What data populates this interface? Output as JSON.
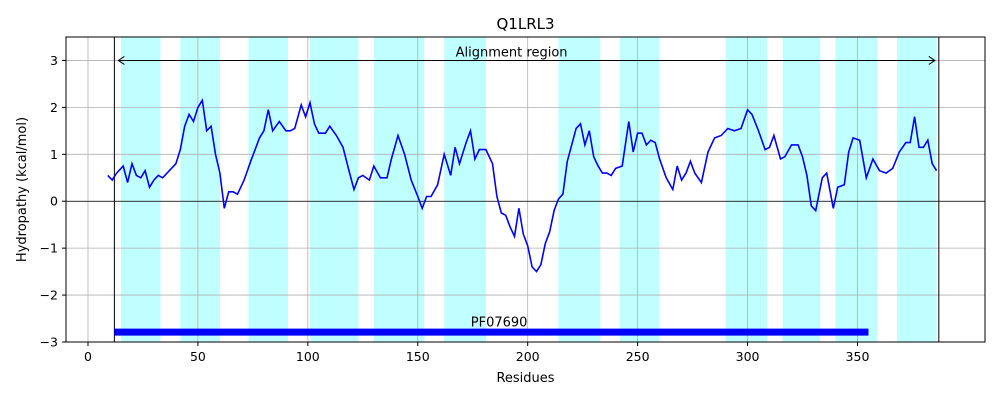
{
  "chart_data": {
    "type": "line",
    "title": "Q1LRL3",
    "xlabel": "Residues",
    "ylabel": "Hydropathy (kcal/mol)",
    "xlim": [
      -10,
      408
    ],
    "ylim": [
      -3,
      3.5
    ],
    "xticks": [
      0,
      50,
      100,
      150,
      200,
      250,
      300,
      350
    ],
    "yticks": [
      -3,
      -2,
      -1,
      0,
      1,
      2,
      3
    ],
    "xtick_labels": [
      "0",
      "50",
      "100",
      "150",
      "200",
      "250",
      "300",
      "350"
    ],
    "ytick_labels": [
      "−3",
      "−2",
      "−1",
      "0",
      "1",
      "2",
      "3"
    ],
    "grid": true,
    "line_color": "#0000ff",
    "band_color": "#c0ffff",
    "domain_color": "#0000ff",
    "series": [
      {
        "x": [
          9,
          11,
          13,
          16,
          18,
          20,
          22,
          24,
          26,
          28,
          30,
          32,
          34,
          37,
          40,
          42,
          44,
          46,
          48,
          50,
          52,
          54,
          56,
          58,
          60,
          62,
          64,
          66,
          68,
          71,
          74,
          76,
          78,
          80,
          82,
          84,
          87,
          90,
          92,
          94,
          97,
          99,
          101,
          103,
          105,
          108,
          110,
          113,
          116,
          119,
          121,
          123,
          125,
          128,
          130,
          133,
          136,
          138,
          141,
          144,
          147,
          150,
          152,
          154,
          156,
          159,
          162,
          165,
          167,
          169,
          172,
          174,
          176,
          178,
          181,
          184,
          186,
          188,
          190,
          192,
          194,
          196,
          198,
          200,
          202,
          204,
          206,
          208,
          210,
          212,
          214,
          216,
          218,
          220,
          222,
          224,
          226,
          228,
          230,
          232,
          234,
          236,
          238,
          240,
          243,
          246,
          248,
          250,
          252,
          254,
          256,
          258,
          260,
          263,
          266,
          268,
          270,
          272,
          274,
          276,
          279,
          282,
          285,
          288,
          291,
          294,
          297,
          300,
          302,
          305,
          308,
          310,
          312,
          315,
          317,
          320,
          323,
          325,
          327,
          329,
          331,
          334,
          336,
          339,
          341,
          344,
          346,
          348,
          351,
          354,
          357,
          360,
          363,
          366,
          369,
          372,
          374,
          376,
          378,
          380,
          382,
          384,
          386
        ],
        "y": [
          0.55,
          0.45,
          0.6,
          0.75,
          0.4,
          0.8,
          0.55,
          0.5,
          0.65,
          0.3,
          0.45,
          0.55,
          0.5,
          0.65,
          0.8,
          1.1,
          1.6,
          1.85,
          1.7,
          2.0,
          2.15,
          1.5,
          1.6,
          1.0,
          0.6,
          -0.15,
          0.2,
          0.2,
          0.15,
          0.45,
          0.85,
          1.1,
          1.35,
          1.5,
          1.95,
          1.5,
          1.7,
          1.5,
          1.5,
          1.55,
          2.05,
          1.8,
          2.1,
          1.65,
          1.45,
          1.45,
          1.6,
          1.4,
          1.15,
          0.6,
          0.25,
          0.5,
          0.55,
          0.45,
          0.75,
          0.5,
          0.5,
          0.9,
          1.4,
          1.0,
          0.45,
          0.1,
          -0.15,
          0.1,
          0.1,
          0.35,
          1.0,
          0.55,
          1.15,
          0.8,
          1.25,
          1.5,
          0.9,
          1.1,
          1.1,
          0.8,
          0.1,
          -0.25,
          -0.3,
          -0.55,
          -0.75,
          -0.15,
          -0.7,
          -0.95,
          -1.4,
          -1.5,
          -1.35,
          -0.9,
          -0.65,
          -0.2,
          0.05,
          0.15,
          0.85,
          1.2,
          1.55,
          1.65,
          1.2,
          1.5,
          0.95,
          0.75,
          0.6,
          0.6,
          0.55,
          0.7,
          0.75,
          1.7,
          1.05,
          1.45,
          1.45,
          1.2,
          1.3,
          1.25,
          0.9,
          0.5,
          0.25,
          0.75,
          0.45,
          0.6,
          0.85,
          0.6,
          0.4,
          1.05,
          1.35,
          1.4,
          1.55,
          1.5,
          1.55,
          1.95,
          1.85,
          1.5,
          1.1,
          1.15,
          1.4,
          0.9,
          0.95,
          1.2,
          1.2,
          0.95,
          0.55,
          -0.1,
          -0.2,
          0.5,
          0.6,
          -0.15,
          0.3,
          0.35,
          1.05,
          1.35,
          1.3,
          0.5,
          0.9,
          0.65,
          0.6,
          0.7,
          1.05,
          1.25,
          1.25,
          1.8,
          1.15,
          1.15,
          1.3,
          0.8,
          0.65
        ]
      }
    ],
    "bands": [
      [
        15,
        33
      ],
      [
        42,
        60
      ],
      [
        73,
        91
      ],
      [
        101,
        123
      ],
      [
        130,
        153
      ],
      [
        162,
        181
      ],
      [
        214,
        233
      ],
      [
        242,
        260
      ],
      [
        290,
        309
      ],
      [
        316,
        333
      ],
      [
        340,
        359
      ],
      [
        368,
        386
      ]
    ],
    "alignment_region": {
      "label": "Alignment region",
      "start": 12,
      "end": 387,
      "y": 3
    },
    "domain": {
      "label": "PF07690",
      "start": 12,
      "end": 355,
      "y": -2.8
    }
  }
}
